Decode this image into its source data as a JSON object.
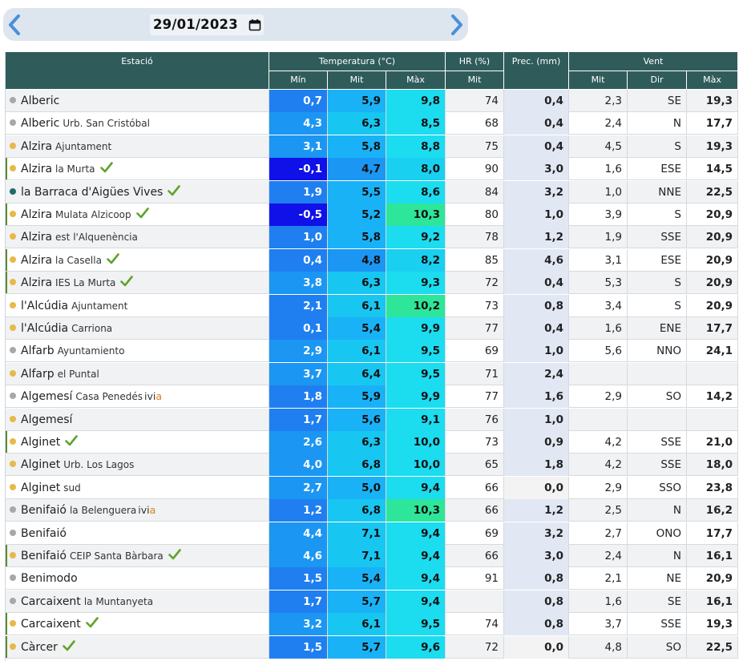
{
  "date": {
    "value": "29/01/2023"
  },
  "header": {
    "station": "Estació",
    "temperature": "Temperatura (°C)",
    "hr": "HR (%)",
    "prec": "Prec. (mm)",
    "wind": "Vent",
    "sub": {
      "tmin": "Mín",
      "tmit": "Mit",
      "tmax": "Màx",
      "hrmit": "Mit",
      "wmit": "Mit",
      "wdir": "Dir",
      "wmax": "Màx"
    }
  },
  "colors": {
    "dot_orange": "#e8b84a",
    "dot_gray": "#a8a8a8",
    "dot_teal": "#1f6b6b",
    "check_green": "#5fa32b",
    "header_bg": "#2f5c5a"
  },
  "rows": [
    {
      "name": "Alberic",
      "sub": "",
      "dot": "gray",
      "check": false,
      "ivia": false,
      "mark": false,
      "tmin": "0,7",
      "tmit": "5,9",
      "tmax": "9,8",
      "hr": "74",
      "prec": "0,4",
      "wmit": "2,3",
      "wdir": "SE",
      "wmax": "19,3"
    },
    {
      "name": "Alberic",
      "sub": "Urb. San Cristóbal",
      "dot": "gray",
      "check": false,
      "ivia": false,
      "mark": false,
      "tmin": "4,3",
      "tmit": "6,3",
      "tmax": "8,5",
      "hr": "68",
      "prec": "0,4",
      "wmit": "2,4",
      "wdir": "N",
      "wmax": "17,7"
    },
    {
      "name": "Alzira",
      "sub": "Ajuntament",
      "dot": "orange",
      "check": false,
      "ivia": false,
      "mark": false,
      "tmin": "3,1",
      "tmit": "5,8",
      "tmax": "8,8",
      "hr": "75",
      "prec": "0,4",
      "wmit": "4,5",
      "wdir": "S",
      "wmax": "19,3"
    },
    {
      "name": "Alzira",
      "sub": "la Murta",
      "dot": "orange",
      "check": true,
      "ivia": false,
      "mark": true,
      "tmin": "-0,1",
      "tmit": "4,7",
      "tmax": "8,0",
      "hr": "90",
      "prec": "3,0",
      "wmit": "1,6",
      "wdir": "ESE",
      "wmax": "14,5"
    },
    {
      "name": "la Barraca d'Aigües Vives",
      "sub": "",
      "dot": "teal",
      "check": true,
      "ivia": false,
      "mark": false,
      "tmin": "1,9",
      "tmit": "5,5",
      "tmax": "8,6",
      "hr": "84",
      "prec": "3,2",
      "wmit": "1,0",
      "wdir": "NNE",
      "wmax": "22,5"
    },
    {
      "name": "Alzira",
      "sub": "Mulata Alzicoop",
      "dot": "orange",
      "check": true,
      "ivia": false,
      "mark": true,
      "tmin": "-0,5",
      "tmit": "5,2",
      "tmax": "10,3",
      "hr": "80",
      "prec": "1,0",
      "wmit": "3,9",
      "wdir": "S",
      "wmax": "20,9"
    },
    {
      "name": "Alzira",
      "sub": "est l'Alquenència",
      "dot": "orange",
      "check": false,
      "ivia": false,
      "mark": false,
      "tmin": "1,0",
      "tmit": "5,8",
      "tmax": "9,2",
      "hr": "78",
      "prec": "1,2",
      "wmit": "1,9",
      "wdir": "SSE",
      "wmax": "20,9"
    },
    {
      "name": "Alzira",
      "sub": "la Casella",
      "dot": "orange",
      "check": true,
      "ivia": false,
      "mark": true,
      "tmin": "0,4",
      "tmit": "4,8",
      "tmax": "8,2",
      "hr": "85",
      "prec": "4,6",
      "wmit": "3,1",
      "wdir": "ESE",
      "wmax": "20,9"
    },
    {
      "name": "Alzira",
      "sub": "IES La Murta",
      "dot": "orange",
      "check": true,
      "ivia": false,
      "mark": true,
      "tmin": "3,8",
      "tmit": "6,3",
      "tmax": "9,3",
      "hr": "72",
      "prec": "0,4",
      "wmit": "5,3",
      "wdir": "S",
      "wmax": "20,9"
    },
    {
      "name": "l'Alcúdia",
      "sub": "Ajuntament",
      "dot": "orange",
      "check": false,
      "ivia": false,
      "mark": false,
      "tmin": "2,1",
      "tmit": "6,1",
      "tmax": "10,2",
      "hr": "73",
      "prec": "0,8",
      "wmit": "3,4",
      "wdir": "S",
      "wmax": "20,9"
    },
    {
      "name": "l'Alcúdia",
      "sub": "Carriona",
      "dot": "orange",
      "check": false,
      "ivia": false,
      "mark": false,
      "tmin": "0,1",
      "tmit": "5,4",
      "tmax": "9,9",
      "hr": "77",
      "prec": "0,4",
      "wmit": "1,6",
      "wdir": "ENE",
      "wmax": "17,7"
    },
    {
      "name": "Alfarb",
      "sub": "Ayuntamiento",
      "dot": "gray",
      "check": false,
      "ivia": false,
      "mark": false,
      "tmin": "2,9",
      "tmit": "6,1",
      "tmax": "9,5",
      "hr": "69",
      "prec": "1,0",
      "wmit": "5,6",
      "wdir": "NNO",
      "wmax": "24,1"
    },
    {
      "name": "Alfarp",
      "sub": "el Puntal",
      "dot": "orange",
      "check": false,
      "ivia": false,
      "mark": false,
      "tmin": "3,7",
      "tmit": "6,4",
      "tmax": "9,5",
      "hr": "71",
      "prec": "2,4",
      "wmit": "",
      "wdir": "",
      "wmax": ""
    },
    {
      "name": "Algemesí",
      "sub": "Casa Penedés",
      "dot": "gray",
      "check": false,
      "ivia": true,
      "mark": false,
      "tmin": "1,8",
      "tmit": "5,9",
      "tmax": "9,9",
      "hr": "77",
      "prec": "1,6",
      "wmit": "2,9",
      "wdir": "SO",
      "wmax": "14,2"
    },
    {
      "name": "Algemesí",
      "sub": "",
      "dot": "orange",
      "check": false,
      "ivia": false,
      "mark": false,
      "tmin": "1,7",
      "tmit": "5,6",
      "tmax": "9,1",
      "hr": "76",
      "prec": "1,0",
      "wmit": "",
      "wdir": "",
      "wmax": ""
    },
    {
      "name": "Alginet",
      "sub": "",
      "dot": "orange",
      "check": true,
      "ivia": false,
      "mark": true,
      "tmin": "2,6",
      "tmit": "6,3",
      "tmax": "10,0",
      "hr": "73",
      "prec": "0,9",
      "wmit": "4,2",
      "wdir": "SSE",
      "wmax": "21,0"
    },
    {
      "name": "Alginet",
      "sub": "Urb. Los Lagos",
      "dot": "orange",
      "check": false,
      "ivia": false,
      "mark": false,
      "tmin": "4,0",
      "tmit": "6,8",
      "tmax": "10,0",
      "hr": "65",
      "prec": "1,8",
      "wmit": "4,2",
      "wdir": "SSE",
      "wmax": "18,0"
    },
    {
      "name": "Alginet",
      "sub": "sud",
      "dot": "orange",
      "check": false,
      "ivia": false,
      "mark": false,
      "tmin": "2,7",
      "tmit": "5,0",
      "tmax": "9,4",
      "hr": "66",
      "prec": "0,0",
      "wmit": "2,9",
      "wdir": "SSO",
      "wmax": "23,8"
    },
    {
      "name": "Benifaió",
      "sub": "la Belenguera",
      "dot": "gray",
      "check": false,
      "ivia": true,
      "mark": false,
      "tmin": "1,2",
      "tmit": "6,8",
      "tmax": "10,3",
      "hr": "66",
      "prec": "1,2",
      "wmit": "2,5",
      "wdir": "N",
      "wmax": "16,2"
    },
    {
      "name": "Benifaió",
      "sub": "",
      "dot": "gray",
      "check": false,
      "ivia": false,
      "mark": false,
      "tmin": "4,4",
      "tmit": "7,1",
      "tmax": "9,4",
      "hr": "69",
      "prec": "3,2",
      "wmit": "2,7",
      "wdir": "ONO",
      "wmax": "17,7"
    },
    {
      "name": "Benifaió",
      "sub": "CEIP Santa Bàrbara",
      "dot": "orange",
      "check": true,
      "ivia": false,
      "mark": true,
      "tmin": "4,6",
      "tmit": "7,1",
      "tmax": "9,4",
      "hr": "66",
      "prec": "3,0",
      "wmit": "2,4",
      "wdir": "N",
      "wmax": "16,1"
    },
    {
      "name": "Benimodo",
      "sub": "",
      "dot": "gray",
      "check": false,
      "ivia": false,
      "mark": false,
      "tmin": "1,5",
      "tmit": "5,4",
      "tmax": "9,4",
      "hr": "91",
      "prec": "0,8",
      "wmit": "2,1",
      "wdir": "NE",
      "wmax": "20,9"
    },
    {
      "name": "Carcaixent",
      "sub": "la Muntanyeta",
      "dot": "gray",
      "check": false,
      "ivia": false,
      "mark": false,
      "tmin": "1,7",
      "tmit": "5,7",
      "tmax": "9,4",
      "hr": "",
      "prec": "0,8",
      "wmit": "1,6",
      "wdir": "SE",
      "wmax": "16,1"
    },
    {
      "name": "Carcaixent",
      "sub": "",
      "dot": "orange",
      "check": true,
      "ivia": false,
      "mark": true,
      "tmin": "3,2",
      "tmit": "6,1",
      "tmax": "9,5",
      "hr": "74",
      "prec": "0,8",
      "wmit": "3,7",
      "wdir": "SSE",
      "wmax": "19,3"
    },
    {
      "name": "Càrcer",
      "sub": "",
      "dot": "orange",
      "check": true,
      "ivia": false,
      "mark": true,
      "tmin": "1,5",
      "tmit": "5,7",
      "tmax": "9,6",
      "hr": "72",
      "prec": "0,0",
      "wmit": "4,8",
      "wdir": "SO",
      "wmax": "22,5"
    }
  ]
}
